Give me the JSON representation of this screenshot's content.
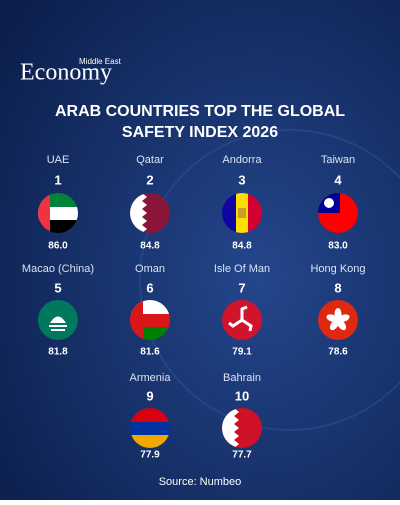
{
  "header": {
    "brand_small": "Middle East",
    "brand": "Economy",
    "title_line1": "ARAB COUNTRIES TOP THE GLOBAL",
    "title_line2": "SAFETY INDEX 2026"
  },
  "items": [
    {
      "name": "UAE",
      "rank": "1",
      "score": "86.0"
    },
    {
      "name": "Qatar",
      "rank": "2",
      "score": "84.8"
    },
    {
      "name": "Andorra",
      "rank": "3",
      "score": "84.8"
    },
    {
      "name": "Taiwan",
      "rank": "4",
      "score": "83.0"
    },
    {
      "name": "Macao (China)",
      "rank": "5",
      "score": "81.8"
    },
    {
      "name": "Oman",
      "rank": "6",
      "score": "81.6"
    },
    {
      "name": "Isle Of Man",
      "rank": "7",
      "score": "79.1"
    },
    {
      "name": "Hong Kong",
      "rank": "8",
      "score": "78.6"
    },
    {
      "name": "Armenia",
      "rank": "9",
      "score": "77.9"
    },
    {
      "name": "Bahrain",
      "rank": "10",
      "score": "77.7"
    }
  ],
  "footer": {
    "source": "Source: Numbeo"
  }
}
